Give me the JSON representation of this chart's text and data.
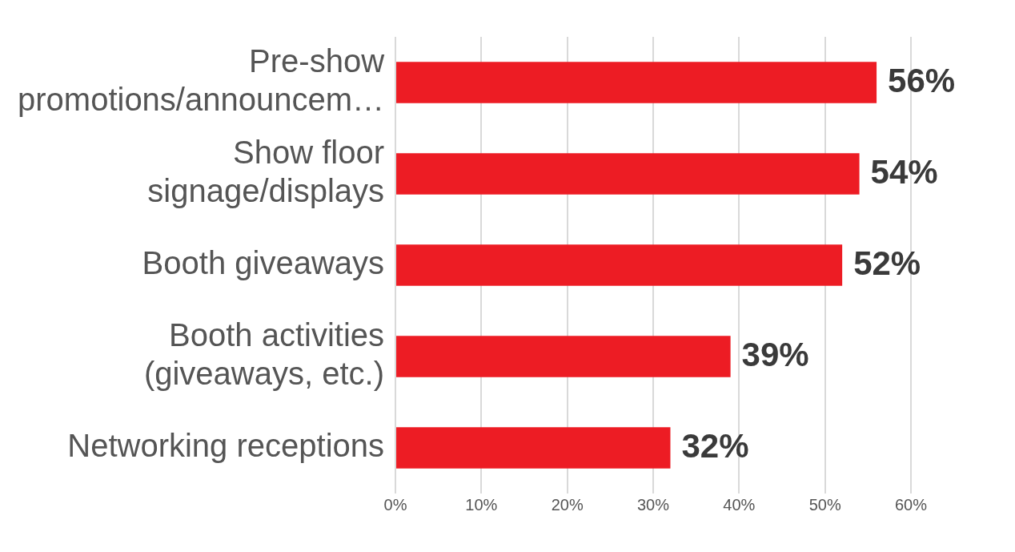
{
  "chart_data": {
    "type": "bar",
    "orientation": "horizontal",
    "categories": [
      "Pre-show promotions/announcem…",
      "Show floor signage/displays",
      "Booth giveaways",
      "Booth activities (giveaways, etc.)",
      "Networking receptions"
    ],
    "values": [
      56,
      54,
      52,
      39,
      32
    ],
    "value_labels": [
      "56%",
      "54%",
      "52%",
      "39%",
      "32%"
    ],
    "color": "#ed1c24",
    "xlim": [
      0,
      60
    ],
    "xticks": [
      {
        "value": 0,
        "label": "0%"
      },
      {
        "value": 10,
        "label": "10%"
      },
      {
        "value": 20,
        "label": "20%"
      },
      {
        "value": 30,
        "label": "30%"
      },
      {
        "value": 40,
        "label": "40%"
      },
      {
        "value": 50,
        "label": "50%"
      },
      {
        "value": 60,
        "label": "60%"
      }
    ],
    "grid": "x"
  }
}
